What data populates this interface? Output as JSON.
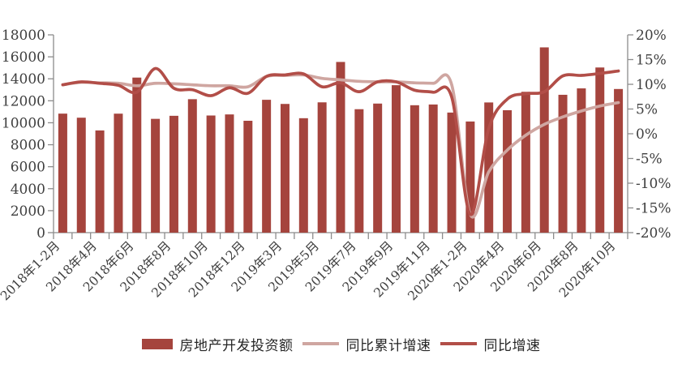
{
  "chart_data": {
    "type": "bar",
    "subtype": "combo-bar-line",
    "title": "",
    "categories": [
      "2018年1-2月",
      "2018年3月",
      "2018年4月",
      "2018年5月",
      "2018年6月",
      "2018年7月",
      "2018年8月",
      "2018年9月",
      "2018年10月",
      "2018年11月",
      "2018年12月",
      "2019年1-2月",
      "2019年3月",
      "2019年4月",
      "2019年5月",
      "2019年6月",
      "2019年7月",
      "2019年8月",
      "2019年9月",
      "2019年10月",
      "2019年11月",
      "2019年12月",
      "2020年1-2月",
      "2020年3月",
      "2020年4月",
      "2020年5月",
      "2020年6月",
      "2020年7月",
      "2020年8月",
      "2020年9月",
      "2020年10月"
    ],
    "x_tick_labels_visible": [
      "2018年1-2月",
      "2018年4月",
      "2018年6月",
      "2018年8月",
      "2018年10月",
      "2018年12月",
      "2019年3月",
      "2019年5月",
      "2019年7月",
      "2019年9月",
      "2019年11月",
      "2020年1-2月",
      "2020年4月",
      "2020年6月",
      "2020年8月",
      "2020年10月"
    ],
    "x_label_interval": 2,
    "bar_series": {
      "name": "房地产开发投资额",
      "axis": "left",
      "color": "#A5443D",
      "values": [
        10831,
        10460,
        9301,
        10828,
        14111,
        10355,
        10633,
        12146,
        10660,
        10758,
        10181,
        12090,
        11713,
        10414,
        11858,
        15534,
        11234,
        11746,
        13419,
        11595,
        11662,
        10929,
        10115,
        11848,
        11140,
        12817,
        16860,
        12545,
        13129,
        15030,
        13072
      ]
    },
    "line_series": [
      {
        "name": "同比累计增速",
        "axis": "right",
        "color": "#CFA6A1",
        "values": [
          9.9,
          10.4,
          10.3,
          10.2,
          9.7,
          10.2,
          10.1,
          9.9,
          9.7,
          9.7,
          9.5,
          11.6,
          11.8,
          11.9,
          11.2,
          10.9,
          10.6,
          10.5,
          10.5,
          10.3,
          10.2,
          9.9,
          -16.3,
          -7.7,
          -3.3,
          -0.3,
          1.9,
          3.4,
          4.6,
          5.6,
          6.3
        ]
      },
      {
        "name": "同比增速",
        "axis": "right",
        "color": "#B24E48",
        "values": [
          9.9,
          10.5,
          10.2,
          9.8,
          8.4,
          13.2,
          9.2,
          8.9,
          7.7,
          9.3,
          8.2,
          11.6,
          11.9,
          12.1,
          9.5,
          10.3,
          8.5,
          10.5,
          10.5,
          8.8,
          8.4,
          7.4,
          -16.3,
          1.1,
          7.0,
          8.1,
          8.5,
          11.7,
          11.8,
          12.2,
          12.7
        ]
      }
    ],
    "left_axis": {
      "min": 0,
      "max": 18000,
      "step": 2000,
      "tick_labels": [
        "0",
        "2000",
        "4000",
        "6000",
        "8000",
        "10000",
        "12000",
        "14000",
        "16000",
        "18000"
      ]
    },
    "right_axis": {
      "min": -20,
      "max": 20,
      "step": 5,
      "unit": "%",
      "tick_labels": [
        "-20%",
        "-15%",
        "-10%",
        "-5%",
        "0%",
        "5%",
        "10%",
        "15%",
        "20%"
      ]
    },
    "legend_position": "bottom",
    "grid": false,
    "colors": {
      "axis_line": "#8C8C8C",
      "tick_text": "#3F3F3F",
      "background": "#FFFFFF"
    }
  }
}
